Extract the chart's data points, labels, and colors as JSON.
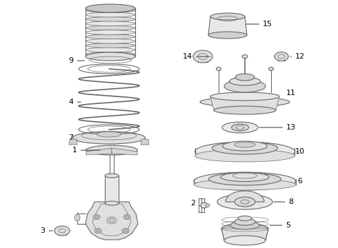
{
  "bg_color": "#ffffff",
  "line_color": "#666666",
  "label_color": "#000000",
  "lw": 0.8,
  "figsize": [
    4.9,
    3.6
  ],
  "dpi": 100
}
